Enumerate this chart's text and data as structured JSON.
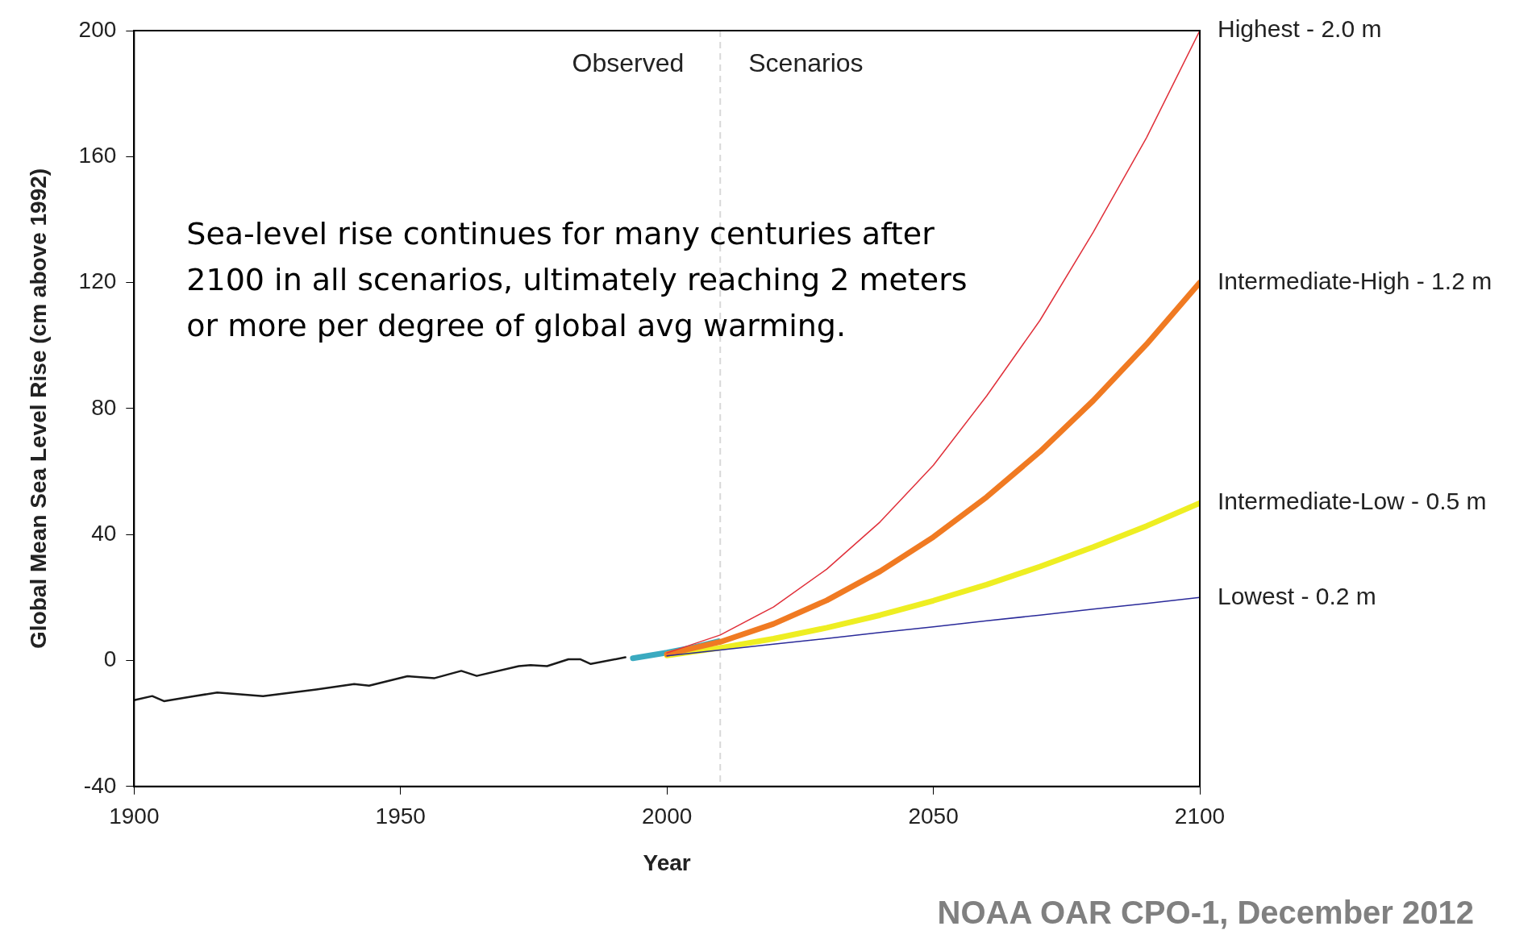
{
  "chart_data": {
    "type": "line",
    "xlabel": "Year",
    "ylabel": "Global Mean Sea Level Rise (cm above 1992)",
    "xlim": [
      1900,
      2100
    ],
    "xticks": [
      1900,
      1950,
      2000,
      2050,
      2100
    ],
    "ylim": [
      -40,
      200
    ],
    "yticks": [
      -40,
      0,
      40,
      80,
      120,
      160,
      200
    ],
    "grid": false,
    "legend": false,
    "marker": "none",
    "line_style": "solid",
    "series": [
      {
        "color": "#1a1a1a",
        "x": [
          1900,
          1903.4,
          1905.6,
          1911.3,
          1915.6,
          1924.2,
          1934.2,
          1941.3,
          1944.1,
          1951.3,
          1956.4,
          1961.4,
          1964.3,
          1972.2,
          1974.4,
          1977.5,
          1981.5,
          1983.7,
          1985.7,
          1992.2
        ],
        "values": [
          -12.6,
          -11.3,
          -12.9,
          -11.3,
          -10.2,
          -11.3,
          -9.2,
          -7.5,
          -8,
          -5,
          -5.6,
          -3.3,
          -4.9,
          -1.8,
          -1.5,
          -1.8,
          0.4,
          0.4,
          -1.1,
          1
        ]
      },
      {
        "color": "#3aaac0",
        "x": [
          1993.6,
          2000,
          2005,
          2009.7
        ],
        "values": [
          0.7,
          2.5,
          4.2,
          6.1
        ]
      },
      {
        "name": "Lowest - 0.2 m",
        "color": "#2a2a9a",
        "x": [
          2000,
          2010,
          2020,
          2030,
          2040,
          2050,
          2060,
          2070,
          2080,
          2090,
          2100
        ],
        "values": [
          1.5,
          3.3,
          5.2,
          7,
          8.9,
          10.7,
          12.6,
          14.4,
          16.3,
          18.1,
          20
        ]
      },
      {
        "name": "Intermediate-Low - 0.5 m",
        "color": "#eeee22",
        "x": [
          2000,
          2010,
          2020,
          2030,
          2040,
          2050,
          2060,
          2070,
          2080,
          2090,
          2100
        ],
        "values": [
          1.6,
          4,
          6.9,
          10.4,
          14.4,
          19,
          24.1,
          29.8,
          36,
          42.7,
          50
        ]
      },
      {
        "name": "Intermediate-High - 1.2 m",
        "color": "#f07a22",
        "x": [
          2000,
          2010,
          2020,
          2030,
          2040,
          2050,
          2060,
          2070,
          2080,
          2090,
          2100
        ],
        "values": [
          2,
          5.9,
          11.6,
          19.1,
          28.3,
          39.2,
          51.9,
          66.3,
          82.5,
          100.4,
          120
        ]
      },
      {
        "name": "Highest - 2.0 m",
        "color": "#e0303a",
        "x": [
          2000,
          2010,
          2020,
          2030,
          2040,
          2050,
          2060,
          2070,
          2080,
          2090,
          2100
        ],
        "values": [
          2.4,
          8.1,
          17,
          29,
          44,
          62,
          84,
          108,
          136,
          166,
          200
        ]
      }
    ],
    "ref_lines": [
      {
        "axis": "x",
        "value": 2010,
        "color": "#d8d8d8",
        "line_style": "dashed"
      }
    ],
    "annotations": [
      "Observed",
      "Scenarios",
      "Sea-level rise continues for many centuries after 2100 in all scenarios, ultimately reaching 2 meters or more per degree of global avg warming.",
      "NOAA OAR CPO-1, December 2012"
    ]
  }
}
